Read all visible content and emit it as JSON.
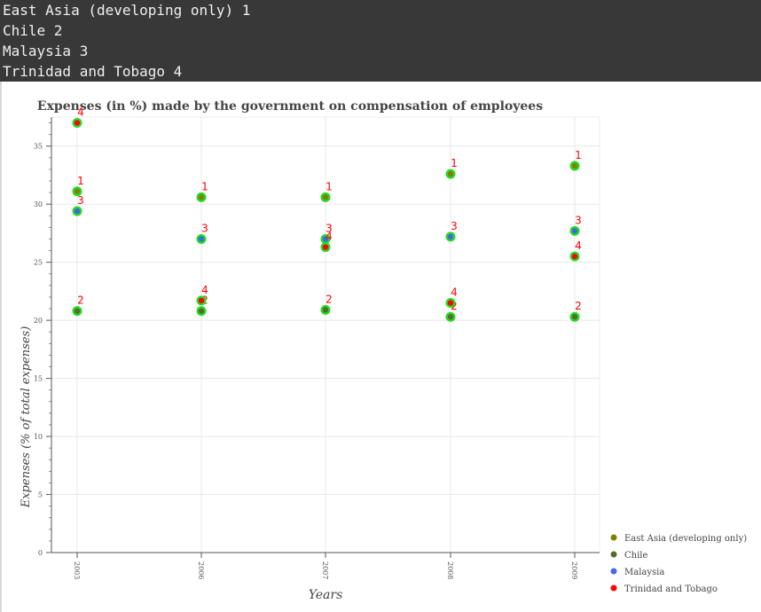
{
  "console": {
    "lines": [
      "East Asia (developing only) 1",
      "Chile 2",
      "Malaysia 3",
      "Trinidad and Tobago 4"
    ]
  },
  "chart_data": {
    "type": "scatter",
    "title": "Expenses (in %) made by the government on compensation of employees",
    "xlabel": "Years",
    "ylabel": "Expenses (% of total expenses)",
    "categories": [
      "2003",
      "2006",
      "2007",
      "2008",
      "2009"
    ],
    "ylim": [
      0,
      37.5
    ],
    "yticks": [
      0,
      5,
      10,
      15,
      20,
      25,
      30,
      35
    ],
    "grid": true,
    "legend_position": "bottom-right",
    "series": [
      {
        "name": "East Asia (developing only)",
        "label": "1",
        "legend_color": "#808000",
        "values": [
          31.1,
          30.6,
          30.6,
          32.6,
          33.3
        ]
      },
      {
        "name": "Chile",
        "label": "2",
        "legend_color": "#556b2f",
        "values": [
          20.8,
          20.8,
          20.9,
          20.3,
          20.3
        ]
      },
      {
        "name": "Malaysia",
        "label": "3",
        "legend_color": "#4169e1",
        "values": [
          29.4,
          27.0,
          27.0,
          27.2,
          27.7
        ]
      },
      {
        "name": "Trinidad and Tobago",
        "label": "4",
        "legend_color": "#ff0000",
        "values": [
          37.0,
          21.7,
          26.3,
          21.5,
          25.5
        ]
      }
    ],
    "marker_outline_color": "#22dd22",
    "label_color": "#ff0000"
  }
}
